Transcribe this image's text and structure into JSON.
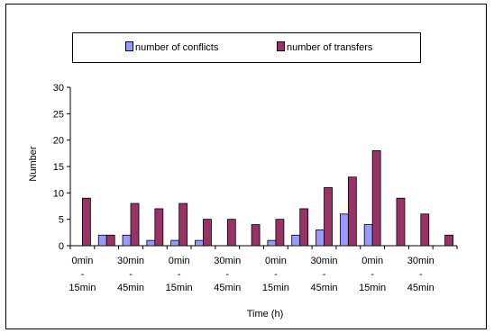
{
  "chart_data": {
    "type": "bar",
    "title": "",
    "xlabel": "Time (h)",
    "ylabel": "Number",
    "ylim": [
      0,
      30
    ],
    "yticks": [
      0,
      5,
      10,
      15,
      20,
      25,
      30
    ],
    "grid": false,
    "legend_position": "top",
    "categories": [
      "0min - 15min",
      "",
      "30min - 45min",
      "",
      "0min - 15min",
      "",
      "30min - 45min",
      "",
      "0min - 15min",
      "",
      "30min - 45min",
      "",
      "0min - 15min",
      "",
      "30min - 45min",
      ""
    ],
    "series": [
      {
        "name": "number of conflicts",
        "color": "#9999ff",
        "values": [
          0,
          2,
          2,
          1,
          1,
          1,
          0,
          0,
          1,
          2,
          3,
          6,
          4,
          0,
          0,
          0
        ]
      },
      {
        "name": "number of transfers",
        "color": "#993366",
        "values": [
          9,
          2,
          8,
          7,
          8,
          5,
          5,
          4,
          5,
          7,
          11,
          13,
          18,
          9,
          6,
          2
        ]
      }
    ]
  }
}
